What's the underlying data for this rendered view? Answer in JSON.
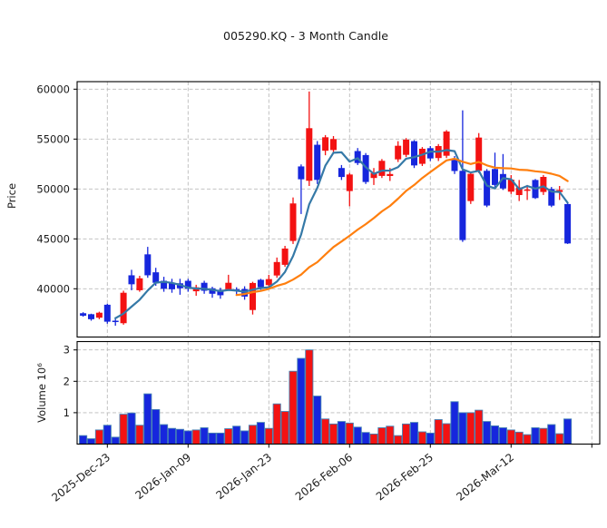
{
  "title": "005290.KQ - 3 Month Candle",
  "price_axis": {
    "label": "Price",
    "ticks": [
      40000,
      45000,
      50000,
      55000,
      60000
    ]
  },
  "volume_axis": {
    "label": "Volume  10⁶",
    "ticks": [
      1,
      2,
      3
    ]
  },
  "colors": {
    "up": "#f31212",
    "down": "#1626dd",
    "ma_fast": "#3579a7",
    "ma_slow": "#ff7f0e",
    "volume_edge": "#4682b4",
    "grid": "#bbbbbb",
    "spine": "#000000",
    "text": "#1a1a1a"
  },
  "chart_data": {
    "type": "candlestick+volume",
    "title": "005290.KQ - 3 Month Candle",
    "ylabel_price": "Price",
    "ylabel_volume": "Volume  10⁶",
    "price_tick_values": [
      40000,
      45000,
      50000,
      55000,
      60000
    ],
    "volume_tick_values_millions": [
      1,
      2,
      3
    ],
    "price_axis_range": [
      35170,
      60760
    ],
    "volume_axis_range_millions": [
      0,
      3.26
    ],
    "x_tick_labels": [
      "2025-Dec-23",
      "2026-Jan-09",
      "2026-Jan-23",
      "2026-Feb-06",
      "2026-Feb-25",
      "2026-Mar-12"
    ],
    "x_tick_candle_indices": [
      3,
      13,
      23,
      33,
      43,
      53
    ],
    "extra_unlabeled_tick_index": 63,
    "grid": true,
    "moving_averages": [
      {
        "period": 5,
        "color_key": "ma_fast"
      },
      {
        "period": 20,
        "color_key": "ma_slow"
      }
    ],
    "up_color_convention": "red = close >= open (Korean style), blue = close < open",
    "candles_format": [
      "date",
      "open",
      "high",
      "low",
      "close",
      "volume_millions"
    ],
    "candles": [
      [
        "2025-Dec-18",
        37550,
        37650,
        37200,
        37300,
        0.27
      ],
      [
        "2025-Dec-19",
        37450,
        37500,
        36800,
        36950,
        0.17
      ],
      [
        "2025-Dec-22",
        37100,
        37700,
        36950,
        37600,
        0.45
      ],
      [
        "2025-Dec-23",
        38400,
        38500,
        36500,
        36700,
        0.6
      ],
      [
        "2025-Dec-24",
        36800,
        37150,
        36300,
        36700,
        0.22
      ],
      [
        "2025-Dec-26",
        36550,
        39800,
        36400,
        39600,
        0.95
      ],
      [
        "2025-Dec-29",
        41350,
        41900,
        39850,
        40450,
        0.99
      ],
      [
        "2025-Dec-30",
        39850,
        41300,
        39700,
        41050,
        0.6
      ],
      [
        "2026-Jan-02",
        43450,
        44200,
        41100,
        41350,
        1.6
      ],
      [
        "2026-Jan-05",
        41650,
        42100,
        40300,
        40600,
        1.1
      ],
      [
        "2026-Jan-06",
        40800,
        41200,
        39700,
        40000,
        0.62
      ],
      [
        "2026-Jan-07",
        40600,
        41000,
        39600,
        39950,
        0.5
      ],
      [
        "2026-Jan-08",
        40550,
        41000,
        39400,
        40050,
        0.47
      ],
      [
        "2026-Jan-09",
        40800,
        41000,
        39700,
        40000,
        0.42
      ],
      [
        "2026-Jan-12",
        39750,
        40400,
        39300,
        40150,
        0.45
      ],
      [
        "2026-Jan-13",
        40600,
        40800,
        39500,
        39800,
        0.52
      ],
      [
        "2026-Jan-14",
        40050,
        40200,
        39100,
        39500,
        0.35
      ],
      [
        "2026-Jan-15",
        39900,
        40100,
        39000,
        39350,
        0.35
      ],
      [
        "2026-Jan-16",
        39950,
        41400,
        39800,
        40600,
        0.49
      ],
      [
        "2026-Jan-19",
        39950,
        40150,
        39300,
        39800,
        0.57
      ],
      [
        "2026-Jan-20",
        39970,
        40250,
        38900,
        39220,
        0.42
      ],
      [
        "2026-Jan-21",
        37870,
        40700,
        37420,
        40580,
        0.6
      ],
      [
        "2026-Jan-22",
        40900,
        41000,
        39900,
        40150,
        0.69
      ],
      [
        "2026-Jan-23",
        40370,
        41400,
        40100,
        40970,
        0.5
      ],
      [
        "2026-Jan-26",
        41330,
        43130,
        41100,
        42680,
        1.28
      ],
      [
        "2026-Jan-27",
        42400,
        44300,
        42200,
        44030,
        1.04
      ],
      [
        "2026-Jan-28",
        44790,
        49150,
        44490,
        48550,
        2.32
      ],
      [
        "2026-Jan-29",
        52260,
        52460,
        47490,
        50970,
        2.73
      ],
      [
        "2026-Jan-30",
        50820,
        59770,
        50300,
        56090,
        3.0
      ],
      [
        "2026-Feb-02",
        54430,
        54800,
        50500,
        50910,
        1.53
      ],
      [
        "2026-Feb-03",
        53830,
        55400,
        53380,
        55180,
        0.8
      ],
      [
        "2026-Feb-04",
        53900,
        55300,
        53600,
        55000,
        0.64
      ],
      [
        "2026-Feb-05",
        52100,
        52400,
        50900,
        51200,
        0.72
      ],
      [
        "2026-Feb-06",
        49790,
        51600,
        48270,
        51450,
        0.67
      ],
      [
        "2026-Feb-09",
        53800,
        54100,
        52400,
        52600,
        0.54
      ],
      [
        "2026-Feb-10",
        53400,
        53600,
        50500,
        50700,
        0.37
      ],
      [
        "2026-Feb-11",
        51100,
        52100,
        50400,
        51600,
        0.32
      ],
      [
        "2026-Feb-12",
        51310,
        53000,
        51100,
        52820,
        0.52
      ],
      [
        "2026-Feb-13",
        51300,
        52100,
        50800,
        51500,
        0.57
      ],
      [
        "2026-Feb-19",
        52970,
        54790,
        52700,
        54330,
        0.27
      ],
      [
        "2026-Feb-20",
        53420,
        55100,
        53200,
        54940,
        0.64
      ],
      [
        "2026-Feb-23",
        54790,
        54900,
        52100,
        52360,
        0.69
      ],
      [
        "2026-Feb-24",
        52520,
        54200,
        52300,
        54030,
        0.39
      ],
      [
        "2026-Feb-25",
        54090,
        54300,
        52800,
        53060,
        0.35
      ],
      [
        "2026-Feb-26",
        53100,
        54500,
        52800,
        54300,
        0.78
      ],
      [
        "2026-Feb-27",
        53330,
        55900,
        53100,
        55760,
        0.65
      ],
      [
        "2026-Mar-03",
        53000,
        53300,
        51500,
        51800,
        1.35
      ],
      [
        "2026-Mar-04",
        51820,
        57880,
        44700,
        44880,
        1.0
      ],
      [
        "2026-Mar-05",
        48790,
        51700,
        48500,
        51520,
        1.0
      ],
      [
        "2026-Mar-06",
        51820,
        55600,
        51600,
        55150,
        1.08
      ],
      [
        "2026-Mar-09",
        51820,
        52000,
        48180,
        48340,
        0.72
      ],
      [
        "2026-Mar-10",
        52000,
        53640,
        50100,
        50400,
        0.58
      ],
      [
        "2026-Mar-11",
        51500,
        53500,
        49900,
        50050,
        0.52
      ],
      [
        "2026-Mar-12",
        49730,
        51390,
        49500,
        50940,
        0.45
      ],
      [
        "2026-Mar-13",
        49390,
        50900,
        48790,
        50150,
        0.38
      ],
      [
        "2026-Mar-16",
        49850,
        50400,
        48900,
        49950,
        0.3
      ],
      [
        "2026-Mar-17",
        50900,
        51000,
        49000,
        49090,
        0.52
      ],
      [
        "2026-Mar-18",
        49700,
        51400,
        49400,
        51210,
        0.5
      ],
      [
        "2026-Mar-19",
        50000,
        50200,
        48180,
        48330,
        0.62
      ],
      [
        "2026-Mar-20",
        49700,
        50300,
        48900,
        49900,
        0.33
      ],
      [
        "2026-Mar-23",
        48490,
        48640,
        44490,
        44540,
        0.8
      ]
    ]
  }
}
